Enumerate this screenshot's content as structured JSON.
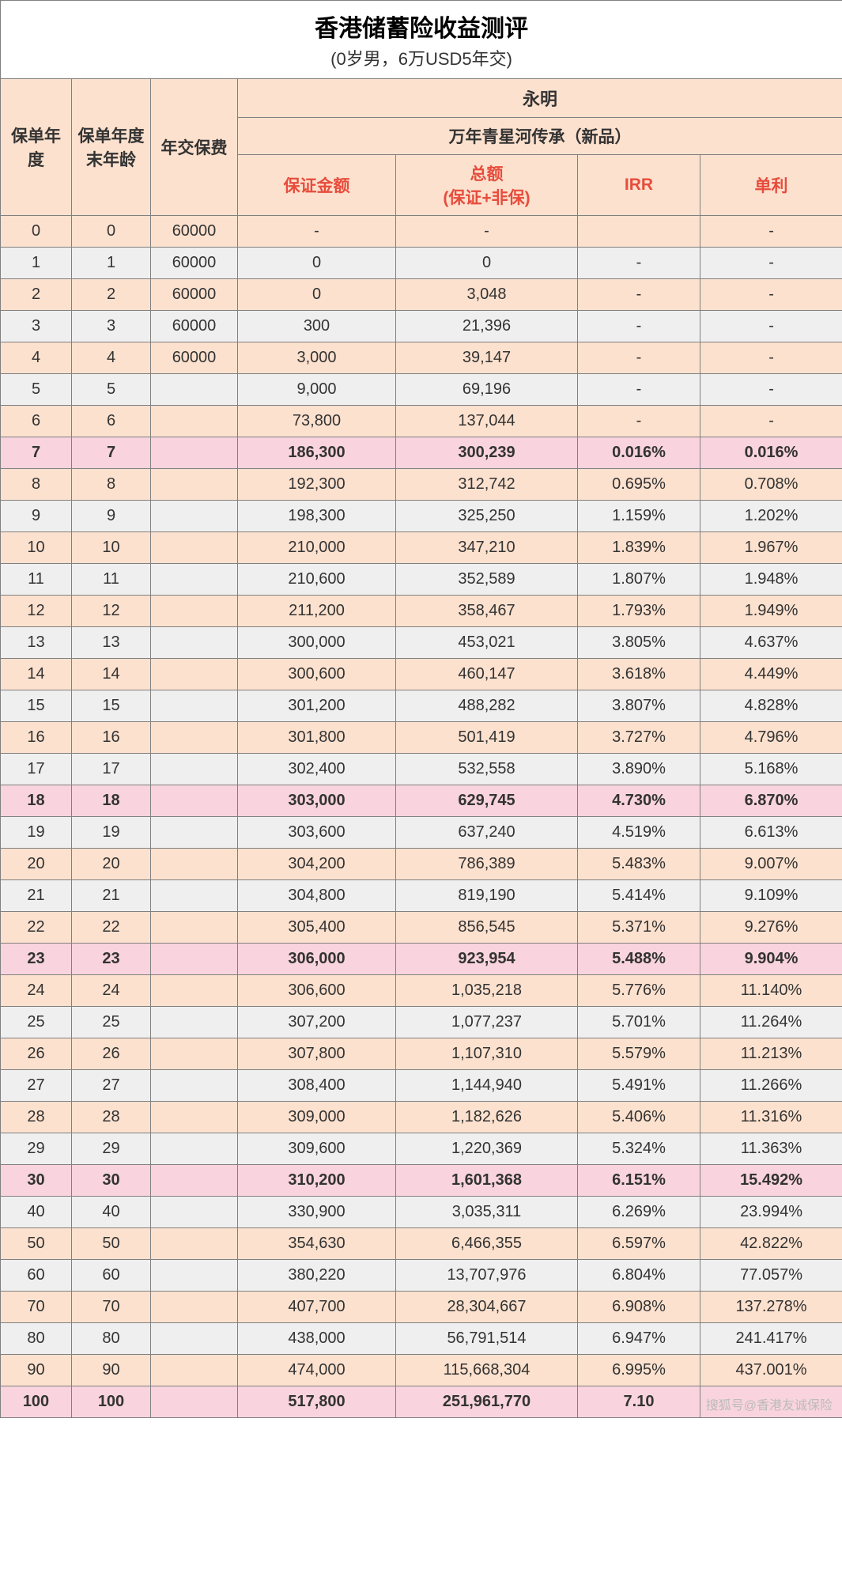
{
  "title": "香港储蓄险收益测评",
  "subtitle": "(0岁男，6万USD5年交)",
  "colwidths": {
    "c0": 90,
    "c1": 100,
    "c2": 110,
    "c3": 200,
    "c4": 230,
    "c5": 155,
    "c6": 180
  },
  "header": {
    "policy_year": "保单年度",
    "age_end": "保单年度末年龄",
    "annual_premium": "年交保费",
    "company": "永明",
    "product": "万年青星河传承（新品）",
    "guaranteed": "保证金额",
    "total": "总额\n(保证+非保)",
    "irr": "IRR",
    "simple": "单利"
  },
  "colors": {
    "peach": "#fce1ce",
    "gray": "#efefef",
    "pink": "#f9d4de",
    "metric_text": "#e74c3c",
    "border": "#808080"
  },
  "watermark": "搜狐号@香港友诚保险",
  "rows": [
    {
      "hl": "none",
      "y": "0",
      "a": "0",
      "p": "60000",
      "g": "-",
      "t": "-",
      "i": "",
      "s": "-"
    },
    {
      "hl": "none",
      "y": "1",
      "a": "1",
      "p": "60000",
      "g": "0",
      "t": "0",
      "i": "-",
      "s": "-"
    },
    {
      "hl": "none",
      "y": "2",
      "a": "2",
      "p": "60000",
      "g": "0",
      "t": "3,048",
      "i": "-",
      "s": "-"
    },
    {
      "hl": "none",
      "y": "3",
      "a": "3",
      "p": "60000",
      "g": "300",
      "t": "21,396",
      "i": "-",
      "s": "-"
    },
    {
      "hl": "none",
      "y": "4",
      "a": "4",
      "p": "60000",
      "g": "3,000",
      "t": "39,147",
      "i": "-",
      "s": "-"
    },
    {
      "hl": "none",
      "y": "5",
      "a": "5",
      "p": "",
      "g": "9,000",
      "t": "69,196",
      "i": "-",
      "s": "-"
    },
    {
      "hl": "none",
      "y": "6",
      "a": "6",
      "p": "",
      "g": "73,800",
      "t": "137,044",
      "i": "-",
      "s": "-"
    },
    {
      "hl": "pink",
      "y": "7",
      "a": "7",
      "p": "",
      "g": "186,300",
      "t": "300,239",
      "i": "0.016%",
      "s": "0.016%"
    },
    {
      "hl": "none",
      "y": "8",
      "a": "8",
      "p": "",
      "g": "192,300",
      "t": "312,742",
      "i": "0.695%",
      "s": "0.708%"
    },
    {
      "hl": "none",
      "y": "9",
      "a": "9",
      "p": "",
      "g": "198,300",
      "t": "325,250",
      "i": "1.159%",
      "s": "1.202%"
    },
    {
      "hl": "none",
      "y": "10",
      "a": "10",
      "p": "",
      "g": "210,000",
      "t": "347,210",
      "i": "1.839%",
      "s": "1.967%"
    },
    {
      "hl": "none",
      "y": "11",
      "a": "11",
      "p": "",
      "g": "210,600",
      "t": "352,589",
      "i": "1.807%",
      "s": "1.948%"
    },
    {
      "hl": "none",
      "y": "12",
      "a": "12",
      "p": "",
      "g": "211,200",
      "t": "358,467",
      "i": "1.793%",
      "s": "1.949%"
    },
    {
      "hl": "none",
      "y": "13",
      "a": "13",
      "p": "",
      "g": "300,000",
      "t": "453,021",
      "i": "3.805%",
      "s": "4.637%"
    },
    {
      "hl": "none",
      "y": "14",
      "a": "14",
      "p": "",
      "g": "300,600",
      "t": "460,147",
      "i": "3.618%",
      "s": "4.449%"
    },
    {
      "hl": "none",
      "y": "15",
      "a": "15",
      "p": "",
      "g": "301,200",
      "t": "488,282",
      "i": "3.807%",
      "s": "4.828%"
    },
    {
      "hl": "none",
      "y": "16",
      "a": "16",
      "p": "",
      "g": "301,800",
      "t": "501,419",
      "i": "3.727%",
      "s": "4.796%"
    },
    {
      "hl": "none",
      "y": "17",
      "a": "17",
      "p": "",
      "g": "302,400",
      "t": "532,558",
      "i": "3.890%",
      "s": "5.168%"
    },
    {
      "hl": "pink",
      "y": "18",
      "a": "18",
      "p": "",
      "g": "303,000",
      "t": "629,745",
      "i": "4.730%",
      "s": "6.870%"
    },
    {
      "hl": "none",
      "y": "19",
      "a": "19",
      "p": "",
      "g": "303,600",
      "t": "637,240",
      "i": "4.519%",
      "s": "6.613%"
    },
    {
      "hl": "none",
      "y": "20",
      "a": "20",
      "p": "",
      "g": "304,200",
      "t": "786,389",
      "i": "5.483%",
      "s": "9.007%"
    },
    {
      "hl": "none",
      "y": "21",
      "a": "21",
      "p": "",
      "g": "304,800",
      "t": "819,190",
      "i": "5.414%",
      "s": "9.109%"
    },
    {
      "hl": "none",
      "y": "22",
      "a": "22",
      "p": "",
      "g": "305,400",
      "t": "856,545",
      "i": "5.371%",
      "s": "9.276%"
    },
    {
      "hl": "pink",
      "y": "23",
      "a": "23",
      "p": "",
      "g": "306,000",
      "t": "923,954",
      "i": "5.488%",
      "s": "9.904%"
    },
    {
      "hl": "none",
      "y": "24",
      "a": "24",
      "p": "",
      "g": "306,600",
      "t": "1,035,218",
      "i": "5.776%",
      "s": "11.140%"
    },
    {
      "hl": "none",
      "y": "25",
      "a": "25",
      "p": "",
      "g": "307,200",
      "t": "1,077,237",
      "i": "5.701%",
      "s": "11.264%"
    },
    {
      "hl": "none",
      "y": "26",
      "a": "26",
      "p": "",
      "g": "307,800",
      "t": "1,107,310",
      "i": "5.579%",
      "s": "11.213%"
    },
    {
      "hl": "none",
      "y": "27",
      "a": "27",
      "p": "",
      "g": "308,400",
      "t": "1,144,940",
      "i": "5.491%",
      "s": "11.266%"
    },
    {
      "hl": "none",
      "y": "28",
      "a": "28",
      "p": "",
      "g": "309,000",
      "t": "1,182,626",
      "i": "5.406%",
      "s": "11.316%"
    },
    {
      "hl": "none",
      "y": "29",
      "a": "29",
      "p": "",
      "g": "309,600",
      "t": "1,220,369",
      "i": "5.324%",
      "s": "11.363%"
    },
    {
      "hl": "pink",
      "y": "30",
      "a": "30",
      "p": "",
      "g": "310,200",
      "t": "1,601,368",
      "i": "6.151%",
      "s": "15.492%"
    },
    {
      "hl": "none",
      "y": "40",
      "a": "40",
      "p": "",
      "g": "330,900",
      "t": "3,035,311",
      "i": "6.269%",
      "s": "23.994%"
    },
    {
      "hl": "none",
      "y": "50",
      "a": "50",
      "p": "",
      "g": "354,630",
      "t": "6,466,355",
      "i": "6.597%",
      "s": "42.822%"
    },
    {
      "hl": "none",
      "y": "60",
      "a": "60",
      "p": "",
      "g": "380,220",
      "t": "13,707,976",
      "i": "6.804%",
      "s": "77.057%"
    },
    {
      "hl": "none",
      "y": "70",
      "a": "70",
      "p": "",
      "g": "407,700",
      "t": "28,304,667",
      "i": "6.908%",
      "s": "137.278%"
    },
    {
      "hl": "none",
      "y": "80",
      "a": "80",
      "p": "",
      "g": "438,000",
      "t": "56,791,514",
      "i": "6.947%",
      "s": "241.417%"
    },
    {
      "hl": "none",
      "y": "90",
      "a": "90",
      "p": "",
      "g": "474,000",
      "t": "115,668,304",
      "i": "6.995%",
      "s": "437.001%"
    },
    {
      "hl": "pink",
      "y": "100",
      "a": "100",
      "p": "",
      "g": "517,800",
      "t": "251,961,770",
      "i": "7.10",
      "s": ""
    }
  ]
}
